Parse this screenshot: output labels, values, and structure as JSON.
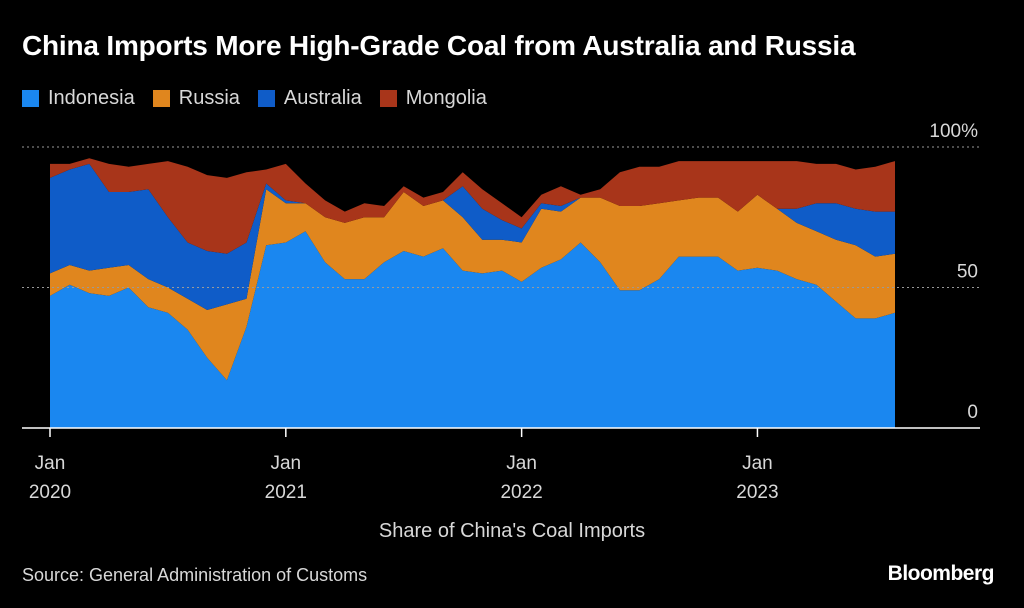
{
  "title": "China Imports More High-Grade Coal from Australia and Russia",
  "source": "Source: General Administration of Customs",
  "brand": "Bloomberg",
  "chart_data": {
    "type": "area",
    "stacked": true,
    "x": [
      "2020-01",
      "2020-02",
      "2020-03",
      "2020-04",
      "2020-05",
      "2020-06",
      "2020-07",
      "2020-08",
      "2020-09",
      "2020-10",
      "2020-11",
      "2020-12",
      "2021-01",
      "2021-02",
      "2021-03",
      "2021-04",
      "2021-05",
      "2021-06",
      "2021-07",
      "2021-08",
      "2021-09",
      "2021-10",
      "2021-11",
      "2021-12",
      "2022-01",
      "2022-02",
      "2022-03",
      "2022-04",
      "2022-05",
      "2022-06",
      "2022-07",
      "2022-08",
      "2022-09",
      "2022-10",
      "2022-11",
      "2022-12",
      "2023-01",
      "2023-02",
      "2023-03",
      "2023-04",
      "2023-05",
      "2023-06",
      "2023-07",
      "2023-08"
    ],
    "series": [
      {
        "name": "Indonesia",
        "color": "#1a87f0",
        "values": [
          47,
          51,
          48,
          47,
          50,
          43,
          41,
          35,
          25,
          17,
          36,
          65,
          66,
          70,
          59,
          53,
          53,
          59,
          63,
          61,
          64,
          56,
          55,
          56,
          52,
          57,
          60,
          66,
          59,
          49,
          49,
          53,
          61,
          61,
          61,
          56,
          57,
          56,
          53,
          51,
          45,
          39,
          39,
          41
        ]
      },
      {
        "name": "Russia",
        "color": "#e0861e",
        "values": [
          8,
          7,
          8,
          10,
          8,
          10,
          9,
          11,
          17,
          27,
          10,
          20,
          14,
          10,
          16,
          20,
          22,
          16,
          21,
          18,
          17,
          19,
          12,
          11,
          14,
          21,
          17,
          16,
          23,
          30,
          30,
          27,
          20,
          21,
          21,
          21,
          26,
          22,
          20,
          19,
          22,
          26,
          22,
          21
        ]
      },
      {
        "name": "Australia",
        "color": "#0f5cc8",
        "values": [
          34,
          34,
          38,
          27,
          26,
          32,
          25,
          20,
          21,
          18,
          20,
          2,
          1,
          0,
          0,
          0,
          0,
          0,
          0,
          0,
          0,
          11,
          11,
          7,
          5,
          2,
          2,
          0,
          0,
          0,
          0,
          0,
          0,
          0,
          0,
          0,
          0,
          0,
          5,
          10,
          13,
          13,
          16,
          15
        ]
      },
      {
        "name": "Mongolia",
        "color": "#a8351a",
        "values": [
          5,
          2,
          2,
          10,
          9,
          9,
          20,
          27,
          27,
          27,
          25,
          5,
          13,
          7,
          6,
          4,
          5,
          4,
          2,
          3,
          3,
          5,
          7,
          6,
          4,
          3,
          7,
          1,
          3,
          12,
          14,
          13,
          14,
          13,
          13,
          18,
          12,
          17,
          17,
          14,
          14,
          14,
          16,
          18
        ]
      }
    ],
    "ylim": [
      0,
      100
    ],
    "y_ticks": [
      0,
      50,
      100
    ],
    "y_tick_labels": [
      "0",
      "50",
      "100%"
    ],
    "x_ticks": [
      {
        "month": "2020-01",
        "line1": "Jan",
        "line2": "2020"
      },
      {
        "month": "2021-01",
        "line1": "Jan",
        "line2": "2021"
      },
      {
        "month": "2022-01",
        "line1": "Jan",
        "line2": "2022"
      },
      {
        "month": "2023-01",
        "line1": "Jan",
        "line2": "2023"
      }
    ],
    "xlabel": "Share of China's Coal Imports",
    "ylabel": "",
    "legend_placement": "top-left",
    "grid": "dotted at 50 and 100"
  }
}
